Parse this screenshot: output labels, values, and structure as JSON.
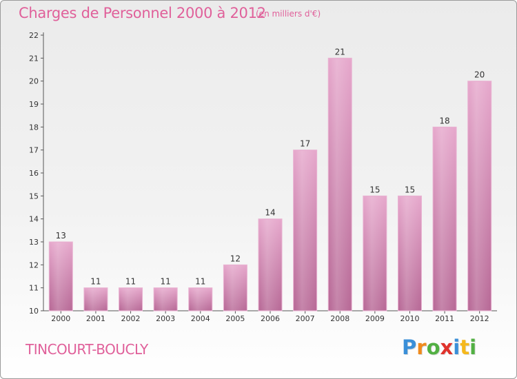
{
  "header": {
    "title": "Charges de Personnel 2000 à 2012",
    "subtitle": "(en milliers d'€)"
  },
  "footer": {
    "commune": "TINCOURT-BOUCLY",
    "logo_text": "Proxiti",
    "logo_letters": [
      {
        "ch": "P",
        "color": "#3a8fd8"
      },
      {
        "ch": "r",
        "color": "#f08a1c"
      },
      {
        "ch": "o",
        "color": "#52b043"
      },
      {
        "ch": "x",
        "color": "#e0322c"
      },
      {
        "ch": "i",
        "color": "#3a8fd8"
      },
      {
        "ch": "t",
        "color": "#f5b81c"
      },
      {
        "ch": "i",
        "color": "#52b043"
      }
    ]
  },
  "chart_data": {
    "type": "bar",
    "title": "Charges de Personnel 2000 à 2012",
    "subtitle": "(en milliers d'€)",
    "categories": [
      "2000",
      "2001",
      "2002",
      "2003",
      "2004",
      "2005",
      "2006",
      "2007",
      "2008",
      "2009",
      "2010",
      "2011",
      "2012"
    ],
    "values": [
      13,
      11,
      11,
      11,
      11,
      12,
      14,
      17,
      21,
      15,
      15,
      18,
      20
    ],
    "ylim": [
      10,
      22
    ],
    "yticks": [
      10,
      11,
      12,
      13,
      14,
      15,
      16,
      17,
      18,
      19,
      20,
      21,
      22
    ],
    "grid": false,
    "bar_color": "#d98ab5"
  }
}
